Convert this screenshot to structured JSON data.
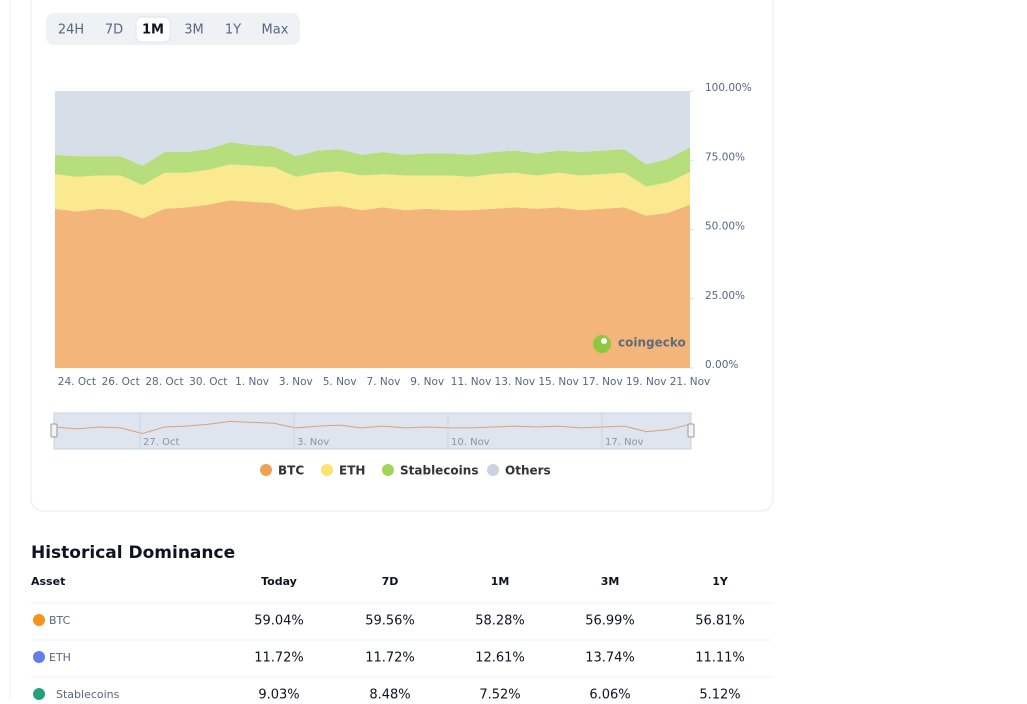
{
  "tabs": [
    "24H",
    "7D",
    "1M",
    "3M",
    "1Y",
    "Max"
  ],
  "active_tab": 2,
  "chart_data": {
    "type": "stacked-area",
    "categories": [
      null,
      "24. Oct",
      null,
      "26. Oct",
      null,
      "28. Oct",
      null,
      "30. Oct",
      null,
      "1. Nov",
      null,
      "3. Nov",
      null,
      "5. Nov",
      null,
      "7. Nov",
      null,
      "9. Nov",
      null,
      "11. Nov",
      null,
      "13. Nov",
      null,
      "15. Nov",
      null,
      "17. Nov",
      null,
      "19. Nov",
      null,
      "21. Nov"
    ],
    "series": [
      {
        "name": "BTC",
        "color": "#f3b57a",
        "marker": "#f0a154",
        "values": [
          57.5,
          56.5,
          57.5,
          57,
          54,
          57.5,
          58,
          59,
          60.5,
          60,
          59.5,
          57,
          58,
          58.5,
          57,
          58,
          57,
          57.5,
          57,
          57,
          57.5,
          58,
          57.5,
          58,
          57,
          57.5,
          58,
          55,
          56,
          59
        ]
      },
      {
        "name": "ETH",
        "color": "#fbe98f",
        "marker": "#fce36e",
        "values": [
          12.5,
          12.5,
          12,
          12.5,
          12,
          13,
          12.5,
          12.5,
          13,
          13,
          13,
          12,
          12.5,
          12.5,
          12.5,
          12,
          12.5,
          12,
          12.5,
          12,
          12.5,
          12.5,
          12,
          12.5,
          12.5,
          12.5,
          12.5,
          10.5,
          11,
          11.7
        ]
      },
      {
        "name": "Stablecoins",
        "color": "#b6de7c",
        "marker": "#a1d65a",
        "values": [
          7,
          7.5,
          7,
          7,
          7,
          7.5,
          7.5,
          7.5,
          8,
          7.5,
          7.5,
          7.5,
          8,
          8,
          7.5,
          8,
          7.5,
          8,
          8,
          8,
          8,
          8,
          8,
          8,
          8.5,
          8.5,
          8.5,
          8,
          8.5,
          9
        ]
      },
      {
        "name": "Others",
        "color": "#d6dee8",
        "marker": "#cbd3de",
        "values": [
          23,
          23.5,
          23.5,
          23.5,
          27,
          22,
          22,
          21,
          18.5,
          19.5,
          20,
          23.5,
          21.5,
          21,
          23,
          22,
          23,
          22.5,
          22.5,
          23,
          22,
          21.5,
          22.5,
          21.5,
          22,
          21.5,
          21,
          26.5,
          24.5,
          20.3
        ]
      }
    ],
    "ylim": [
      0,
      100
    ],
    "yticks": [
      {
        "value": 0,
        "label": "0.00%"
      },
      {
        "value": 25,
        "label": "25.00%"
      },
      {
        "value": 50,
        "label": "50.00%"
      },
      {
        "value": 75,
        "label": "75.00%"
      },
      {
        "value": 100,
        "label": "100.00%"
      }
    ],
    "watermark": "coingecko"
  },
  "navigator": {
    "labels": [
      "27. Oct",
      "3. Nov",
      "10. Nov",
      "17. Nov"
    ]
  },
  "table": {
    "title": "Historical Dominance",
    "header": [
      "Asset",
      "Today",
      "7D",
      "1M",
      "3M",
      "1Y"
    ],
    "rows": [
      [
        "BTC",
        "59.04%",
        "59.56%",
        "58.28%",
        "56.99%",
        "56.81%"
      ],
      [
        "ETH",
        "11.72%",
        "11.72%",
        "12.61%",
        "13.74%",
        "11.11%"
      ],
      [
        "Stablecoins",
        "9.03%",
        "8.48%",
        "7.52%",
        "6.06%",
        "5.12%"
      ]
    ]
  }
}
